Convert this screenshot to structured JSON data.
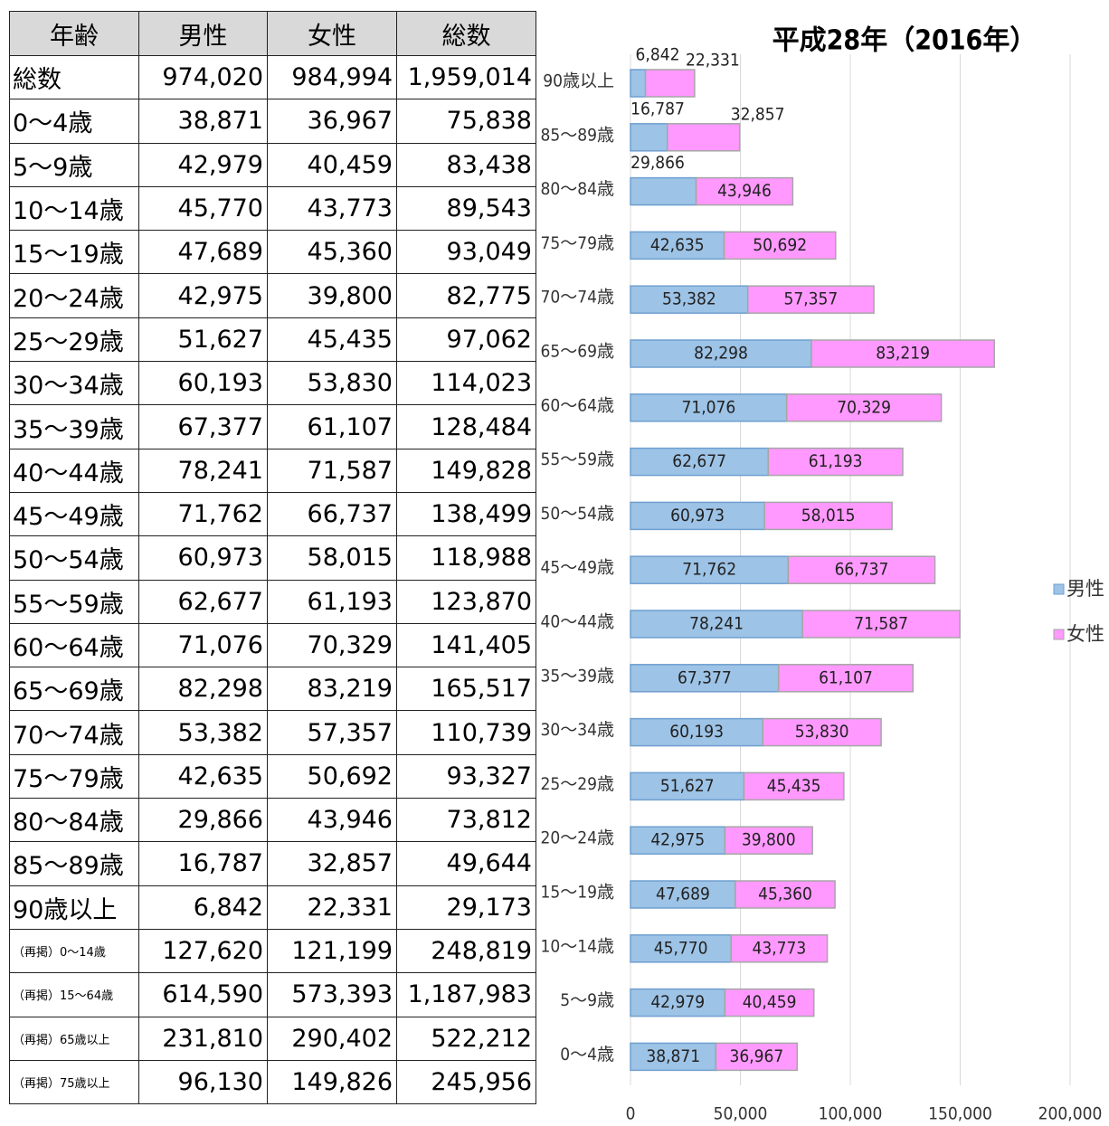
{
  "table": {
    "header": [
      "年齢",
      "男性",
      "女性",
      "総数"
    ],
    "rows": [
      [
        "総数",
        "974,020",
        "984,994",
        "1,959,014"
      ],
      [
        "0〜4歳",
        "38,871",
        "36,967",
        "75,838"
      ],
      [
        "5〜9歳",
        "42,979",
        "40,459",
        "83,438"
      ],
      [
        "10〜14歳",
        "45,770",
        "43,773",
        "89,543"
      ],
      [
        "15〜19歳",
        "47,689",
        "45,360",
        "93,049"
      ],
      [
        "20〜24歳",
        "42,975",
        "39,800",
        "82,775"
      ],
      [
        "25〜29歳",
        "51,627",
        "45,435",
        "97,062"
      ],
      [
        "30〜34歳",
        "60,193",
        "53,830",
        "114,023"
      ],
      [
        "35〜39歳",
        "67,377",
        "61,107",
        "128,484"
      ],
      [
        "40〜44歳",
        "78,241",
        "71,587",
        "149,828"
      ],
      [
        "45〜49歳",
        "71,762",
        "66,737",
        "138,499"
      ],
      [
        "50〜54歳",
        "60,973",
        "58,015",
        "118,988"
      ],
      [
        "55〜59歳",
        "62,677",
        "61,193",
        "123,870"
      ],
      [
        "60〜64歳",
        "71,076",
        "70,329",
        "141,405"
      ],
      [
        "65〜69歳",
        "82,298",
        "83,219",
        "165,517"
      ],
      [
        "70〜74歳",
        "53,382",
        "57,357",
        "110,739"
      ],
      [
        "75〜79歳",
        "42,635",
        "50,692",
        "93,327"
      ],
      [
        "80〜84歳",
        "29,866",
        "43,946",
        "73,812"
      ],
      [
        "85〜89歳",
        "16,787",
        "32,857",
        "49,644"
      ],
      [
        "90歳以上",
        "6,842",
        "22,331",
        "29,173"
      ],
      [
        "（再掲）0〜14歳",
        "127,620",
        "121,199",
        "248,819"
      ],
      [
        "（再掲）15〜64歳",
        "614,590",
        "573,393",
        "1,187,983"
      ],
      [
        "（再掲）65歳以上",
        "231,810",
        "290,402",
        "522,212"
      ],
      [
        "（再掲）75歳以上",
        "96,130",
        "149,826",
        "245,956"
      ]
    ]
  },
  "chart_data": {
    "type": "bar",
    "orientation": "horizontal",
    "stacked": true,
    "title": "平成28年（2016年）",
    "categories": [
      "0〜4歳",
      "5〜9歳",
      "10〜14歳",
      "15〜19歳",
      "20〜24歳",
      "25〜29歳",
      "30〜34歳",
      "35〜39歳",
      "40〜44歳",
      "45〜49歳",
      "50〜54歳",
      "55〜59歳",
      "60〜64歳",
      "65〜69歳",
      "70〜74歳",
      "75〜79歳",
      "80〜84歳",
      "85〜89歳",
      "90歳以上"
    ],
    "series": [
      {
        "name": "男性",
        "color": "#9dc3e6",
        "values": [
          38871,
          42979,
          45770,
          47689,
          42975,
          51627,
          60193,
          67377,
          78241,
          71762,
          60973,
          62677,
          71076,
          82298,
          53382,
          42635,
          29866,
          16787,
          6842
        ],
        "value_labels": [
          "38,871",
          "42,979",
          "45,770",
          "47,689",
          "42,975",
          "51,627",
          "60,193",
          "67,377",
          "78,241",
          "71,762",
          "60,973",
          "62,677",
          "71,076",
          "82,298",
          "53,382",
          "42,635",
          "29,866",
          "16,787",
          "6,842"
        ]
      },
      {
        "name": "女性",
        "color": "#ff99ff",
        "values": [
          36967,
          40459,
          43773,
          45360,
          39800,
          45435,
          53830,
          61107,
          71587,
          66737,
          58015,
          61193,
          70329,
          83219,
          57357,
          50692,
          43946,
          32857,
          22331
        ],
        "value_labels": [
          "36,967",
          "40,459",
          "43,773",
          "45,360",
          "39,800",
          "45,435",
          "53,830",
          "61,107",
          "71,587",
          "66,737",
          "58,015",
          "61,193",
          "70,329",
          "83,219",
          "57,357",
          "50,692",
          "43,946",
          "32,857",
          "22,331"
        ]
      }
    ],
    "xlim": [
      0,
      200000
    ],
    "xticks": [
      0,
      {
        "value": 50000,
        "label": "50,000"
      },
      {
        "value": 100000,
        "label": "100,000"
      },
      {
        "value": 150000,
        "label": "150,000"
      },
      {
        "value": 200000,
        "label": "200,000"
      }
    ],
    "grid": true,
    "legend": "right"
  }
}
